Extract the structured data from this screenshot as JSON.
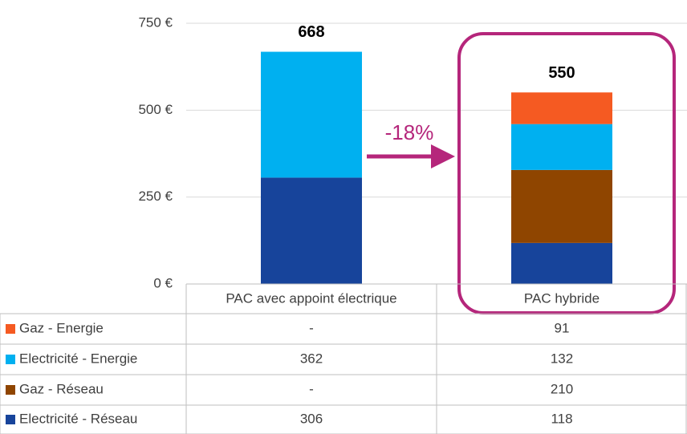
{
  "chart_data": {
    "type": "stacked_bar",
    "categories": [
      "PAC avec appoint électrique",
      "PAC hybride"
    ],
    "series": [
      {
        "name": "Electricité - Réseau",
        "color": "#17449b",
        "values": [
          306,
          118
        ],
        "value_labels": [
          "306",
          "118"
        ]
      },
      {
        "name": "Gaz - Réseau",
        "color": "#8f4500",
        "values": [
          null,
          210
        ],
        "value_labels": [
          "-",
          "210"
        ]
      },
      {
        "name": "Electricité - Energie",
        "color": "#00b0f0",
        "values": [
          362,
          132
        ],
        "value_labels": [
          "362",
          "132"
        ]
      },
      {
        "name": "Gaz - Energie",
        "color": "#f55a22",
        "values": [
          null,
          91
        ],
        "value_labels": [
          "-",
          "91"
        ]
      }
    ],
    "totals": [
      668,
      550
    ],
    "annotation": "-18%",
    "ylim": [
      0,
      750
    ],
    "yticks": [
      {
        "value": 0,
        "label": "0 €"
      },
      {
        "value": 250,
        "label": "250 €"
      },
      {
        "value": 500,
        "label": "500 €"
      },
      {
        "value": 750,
        "label": "750 €"
      }
    ],
    "grid": true
  }
}
